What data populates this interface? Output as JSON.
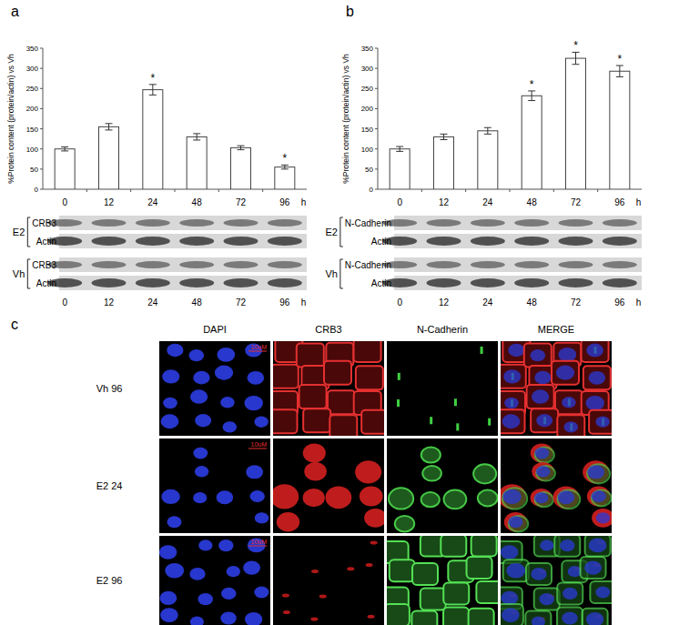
{
  "chart_data": [
    {
      "type": "bar",
      "title": "a",
      "y_label": "%Protein content (protein/actin) vs Vh",
      "x_label": "h",
      "categories": [
        "0",
        "12",
        "24",
        "48",
        "72",
        "96"
      ],
      "values": [
        100,
        155,
        247,
        130,
        103,
        55
      ],
      "errors": [
        5,
        8,
        13,
        8,
        5,
        5
      ],
      "significance": [
        null,
        null,
        "*",
        null,
        null,
        "*"
      ],
      "color": "#ffffff",
      "ylim": [
        0,
        350
      ],
      "yticks": [
        0,
        50,
        100,
        150,
        200,
        250,
        300,
        350
      ],
      "grid": false
    },
    {
      "type": "bar",
      "title": "b",
      "y_label": "%Protein content (protein/actin) vs Vh",
      "x_label": "h",
      "categories": [
        "0",
        "12",
        "24",
        "48",
        "72",
        "96"
      ],
      "values": [
        100,
        130,
        145,
        232,
        325,
        293
      ],
      "errors": [
        6,
        7,
        8,
        12,
        15,
        14
      ],
      "significance": [
        null,
        null,
        null,
        "*",
        "*",
        "*"
      ],
      "color": "#ffffff",
      "ylim": [
        0,
        350
      ],
      "yticks": [
        0,
        50,
        100,
        150,
        200,
        250,
        300,
        350
      ],
      "grid": false
    }
  ],
  "blots": [
    {
      "groups": [
        {
          "label": "E2",
          "rows": [
            "CRB3",
            "Actin"
          ]
        },
        {
          "label": "Vh",
          "rows": [
            "CRB3",
            "Actin"
          ]
        }
      ],
      "lanes": [
        "0",
        "12",
        "24",
        "48",
        "72",
        "96"
      ],
      "unit": "h"
    },
    {
      "groups": [
        {
          "label": "E2",
          "rows": [
            "N-Cadherin",
            "Actin"
          ]
        },
        {
          "label": "Vh",
          "rows": [
            "N-Cadherin",
            "Actin"
          ]
        }
      ],
      "lanes": [
        "0",
        "12",
        "24",
        "48",
        "72",
        "96"
      ],
      "unit": "h"
    }
  ],
  "microscopy": {
    "title": "c",
    "columns": [
      "DAPI",
      "CRB3",
      "N-Cadherin",
      "MERGE"
    ],
    "rows": [
      "Vh 96",
      "E2 24",
      "E2 96"
    ],
    "scale_label": "10uM"
  }
}
